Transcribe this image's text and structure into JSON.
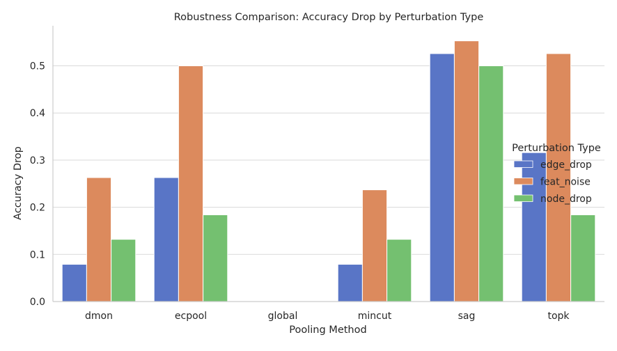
{
  "chart_data": {
    "type": "bar",
    "title": "Robustness Comparison: Accuracy Drop by Perturbation Type",
    "xlabel": "Pooling Method",
    "ylabel": "Accuracy Drop",
    "categories": [
      "dmon",
      "ecpool",
      "global",
      "mincut",
      "sag",
      "topk"
    ],
    "ylim": [
      0,
      0.585
    ],
    "yticks": [
      0.0,
      0.1,
      0.2,
      0.3,
      0.4,
      0.5
    ],
    "ytick_labels": [
      "0.0",
      "0.1",
      "0.2",
      "0.3",
      "0.4",
      "0.5"
    ],
    "grid": "horizontal",
    "legend": {
      "title": "Perturbation Type",
      "placement": "right"
    },
    "series": [
      {
        "name": "edge_drop",
        "color": "#5975c6",
        "values": [
          0.079,
          0.263,
          0.0,
          0.079,
          0.526,
          0.316
        ]
      },
      {
        "name": "feat_noise",
        "color": "#dc8a5d",
        "values": [
          0.263,
          0.5,
          0.0,
          0.237,
          0.553,
          0.526
        ]
      },
      {
        "name": "node_drop",
        "color": "#74c070",
        "values": [
          0.132,
          0.184,
          0.0,
          0.132,
          0.5,
          0.184
        ]
      }
    ]
  }
}
